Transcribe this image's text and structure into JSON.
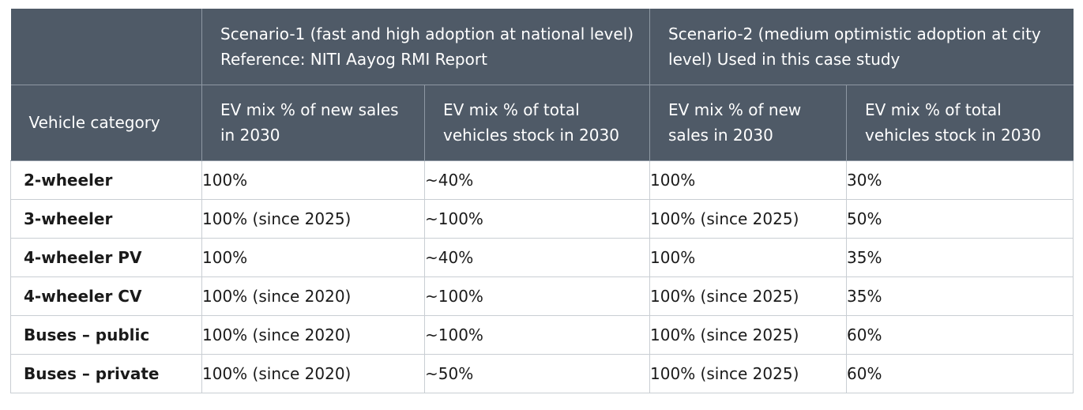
{
  "table": {
    "scenario_headers": [
      "Scenario-1 (fast and high adoption at national level) Reference: NITI Aayog RMI Report",
      "Scenario-2 (medium optimistic adoption at city level) Used in this case study"
    ],
    "category_header": "Vehicle category",
    "sub_headers": [
      "EV mix % of new sales in 2030",
      "EV mix % of total vehicles stock in 2030",
      "EV mix % of new sales in 2030",
      "EV mix % of total vehicles stock in 2030"
    ],
    "rows": [
      [
        "2-wheeler",
        "100%",
        "~40%",
        "100%",
        "30%"
      ],
      [
        "3-wheeler",
        "100% (since 2025)",
        "~100%",
        "100% (since 2025)",
        "50%"
      ],
      [
        "4-wheeler PV",
        "100%",
        "~40%",
        "100%",
        "35%"
      ],
      [
        "4-wheeler CV",
        "100% (since 2020)",
        "~100%",
        "100% (since 2025)",
        "35%"
      ],
      [
        "Buses – public",
        "100% (since 2020)",
        "~100%",
        "100% (since 2025)",
        "60%"
      ],
      [
        "Buses – private",
        "100% (since 2020)",
        "~50%",
        "100% (since 2025)",
        "60%"
      ]
    ]
  },
  "colors": {
    "header_bg": "#4f5a67",
    "header_text": "#ffffff",
    "grid": "#c9ced3"
  }
}
